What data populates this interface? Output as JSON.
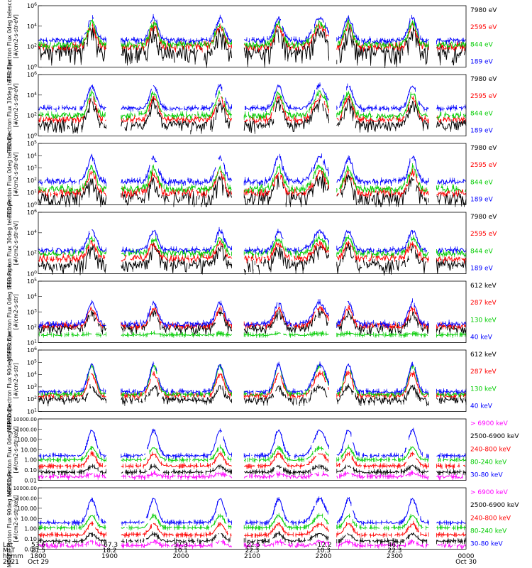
{
  "chart_data": [
    {
      "type": "line",
      "title": "",
      "ylabel": "TED Electron Flux 0deg telescope [#/cm2-s-str-eV]",
      "y_scale": "log",
      "ylim": [
        1,
        1000000
      ],
      "ytick_labels": [
        "10^0",
        "10^2",
        "10^4",
        "10^6"
      ],
      "series": [
        {
          "name": "7980 eV",
          "color": "#000000",
          "baseline": 1.6,
          "peak": 3.6,
          "noise": 1.0
        },
        {
          "name": "2595 eV",
          "color": "#ff0000",
          "baseline": 2.0,
          "peak": 4.0,
          "noise": 0.7
        },
        {
          "name": "844 eV",
          "color": "#00cc00",
          "baseline": 2.2,
          "peak": 4.3,
          "noise": 0.6
        },
        {
          "name": "189 eV",
          "color": "#0000ff",
          "baseline": 2.6,
          "peak": 4.8,
          "noise": 0.4
        }
      ]
    },
    {
      "type": "line",
      "title": "",
      "ylabel": "TED Electron Flux 30deg telescope [#/cm2-s-str-eV]",
      "y_scale": "log",
      "ylim": [
        1,
        1000000
      ],
      "ytick_labels": [
        "10^0",
        "10^2",
        "10^4",
        "10^6"
      ],
      "series": [
        {
          "name": "7980 eV",
          "color": "#000000",
          "baseline": 1.2,
          "peak": 3.4,
          "noise": 0.6
        },
        {
          "name": "2595 eV",
          "color": "#ff0000",
          "baseline": 1.6,
          "peak": 3.8,
          "noise": 0.5
        },
        {
          "name": "844 eV",
          "color": "#00cc00",
          "baseline": 2.0,
          "peak": 4.2,
          "noise": 0.5
        },
        {
          "name": "189 eV",
          "color": "#0000ff",
          "baseline": 2.7,
          "peak": 4.9,
          "noise": 0.3
        }
      ]
    },
    {
      "type": "line",
      "title": "",
      "ylabel": "TED Proton Flux 0deg telescope [#/cm2-s-str-eV]",
      "y_scale": "log",
      "ylim": [
        1,
        100000
      ],
      "ytick_labels": [
        "10^0",
        "10^1",
        "10^2",
        "10^3",
        "10^4",
        "10^5"
      ],
      "series": [
        {
          "name": "7980 eV",
          "color": "#000000",
          "baseline": 0.6,
          "peak": 2.2,
          "noise": 0.8
        },
        {
          "name": "2595 eV",
          "color": "#ff0000",
          "baseline": 1.0,
          "peak": 2.6,
          "noise": 0.6
        },
        {
          "name": "844 eV",
          "color": "#00cc00",
          "baseline": 1.3,
          "peak": 3.0,
          "noise": 0.5
        },
        {
          "name": "189 eV",
          "color": "#0000ff",
          "baseline": 1.9,
          "peak": 3.9,
          "noise": 0.4
        }
      ]
    },
    {
      "type": "line",
      "title": "",
      "ylabel": "TED Proton Flux 30deg telescope [#/cm2-s-str-eV]",
      "y_scale": "log",
      "ylim": [
        1,
        1000000
      ],
      "ytick_labels": [
        "10^0",
        "10^2",
        "10^4",
        "10^6"
      ],
      "series": [
        {
          "name": "7980 eV",
          "color": "#000000",
          "baseline": 1.0,
          "peak": 2.6,
          "noise": 0.7
        },
        {
          "name": "2595 eV",
          "color": "#ff0000",
          "baseline": 1.5,
          "peak": 3.0,
          "noise": 0.6
        },
        {
          "name": "844 eV",
          "color": "#00cc00",
          "baseline": 2.0,
          "peak": 3.4,
          "noise": 0.5
        },
        {
          "name": "189 eV",
          "color": "#0000ff",
          "baseline": 2.3,
          "peak": 4.2,
          "noise": 0.4
        }
      ]
    },
    {
      "type": "line",
      "title": "",
      "ylabel": "MEPED Electron Flux 0deg telescope [#/cm2-s-str]",
      "y_scale": "log",
      "ylim": [
        10,
        100000
      ],
      "ytick_labels": [
        "10^1",
        "10^2",
        "10^3",
        "10^4",
        "10^5"
      ],
      "series": [
        {
          "name": "612 keV",
          "color": "#000000",
          "baseline": 2.0,
          "peak": 3.0,
          "noise": 0.3
        },
        {
          "name": "287 keV",
          "color": "#ff0000",
          "baseline": 2.1,
          "peak": 3.2,
          "noise": 0.3
        },
        {
          "name": "130 keV",
          "color": "#00cc00",
          "baseline": 1.5,
          "peak": 1.6,
          "noise": 0.1
        },
        {
          "name": "40 keV",
          "color": "#0000ff",
          "baseline": 2.2,
          "peak": 3.6,
          "noise": 0.3
        }
      ]
    },
    {
      "type": "line",
      "title": "",
      "ylabel": "MEPED Electron Flux 90deg telescope [#/cm2-s-str]",
      "y_scale": "log",
      "ylim": [
        10,
        1000000
      ],
      "ytick_labels": [
        "10^1",
        "10^2",
        "10^3",
        "10^4",
        "10^5",
        "10^6"
      ],
      "series": [
        {
          "name": "612 keV",
          "color": "#000000",
          "baseline": 2.0,
          "peak": 3.0,
          "noise": 0.3
        },
        {
          "name": "287 keV",
          "color": "#ff0000",
          "baseline": 2.3,
          "peak": 4.1,
          "noise": 0.3
        },
        {
          "name": "130 keV",
          "color": "#00cc00",
          "baseline": 2.4,
          "peak": 4.7,
          "noise": 0.2
        },
        {
          "name": "40 keV",
          "color": "#0000ff",
          "baseline": 2.6,
          "peak": 4.8,
          "noise": 0.2
        }
      ]
    },
    {
      "type": "line",
      "title": "",
      "ylabel": "MEPED Proton Flux 0deg telescope [#/cm2-s-str-keV]",
      "y_scale": "log",
      "ylim": [
        0.01,
        10000
      ],
      "ytick_labels": [
        "0.01",
        "0.10",
        "1.00",
        "10.00",
        "100.00",
        "1000.00",
        "10000.00"
      ],
      "series": [
        {
          "name": "> 6900 keV",
          "color": "#ff00ff",
          "baseline": -1.6,
          "peak": -1.3,
          "noise": 0.15
        },
        {
          "name": "2500-6900 keV",
          "color": "#000000",
          "baseline": -1.2,
          "peak": -0.6,
          "noise": 0.2
        },
        {
          "name": "240-800 keV",
          "color": "#ff0000",
          "baseline": -0.6,
          "peak": 0.6,
          "noise": 0.2
        },
        {
          "name": "80-240 keV",
          "color": "#00cc00",
          "baseline": 0.0,
          "peak": 1.2,
          "noise": 0.15
        },
        {
          "name": "30-80 keV",
          "color": "#0000ff",
          "baseline": 0.4,
          "peak": 2.9,
          "noise": 0.2
        }
      ]
    },
    {
      "type": "line",
      "title": "",
      "ylabel": "MEPED Proton Flux 90deg telescope [#/cm2-s-str-keV]",
      "y_scale": "log",
      "ylim": [
        0.01,
        10000
      ],
      "ytick_labels": [
        "0.01",
        "0.10",
        "1.00",
        "10.00",
        "100.00",
        "1000.00",
        "10000.00"
      ],
      "series": [
        {
          "name": "> 6900 keV",
          "color": "#ff00ff",
          "baseline": -1.6,
          "peak": -1.2,
          "noise": 0.15
        },
        {
          "name": "2500-6900 keV",
          "color": "#000000",
          "baseline": -1.2,
          "peak": -0.5,
          "noise": 0.2
        },
        {
          "name": "240-800 keV",
          "color": "#ff0000",
          "baseline": -0.6,
          "peak": 0.5,
          "noise": 0.2
        },
        {
          "name": "80-240 keV",
          "color": "#00cc00",
          "baseline": 0.1,
          "peak": 1.3,
          "noise": 0.15
        },
        {
          "name": "30-80 keV",
          "color": "#0000ff",
          "baseline": 0.6,
          "peak": 2.9,
          "noise": 0.2
        }
      ]
    }
  ],
  "x_axis": {
    "row_labels": [
      "Lat",
      "MLT",
      "hhmm",
      "2021"
    ],
    "ticks": [
      {
        "lat": "53.6",
        "mlt": "21.5",
        "hhmm": "1800",
        "date": "Oct 29"
      },
      {
        "lat": "-67.3",
        "mlt": "18.2",
        "hhmm": "1900",
        "date": ""
      },
      {
        "lat": "57.3",
        "mlt": "10.1",
        "hhmm": "2000",
        "date": ""
      },
      {
        "lat": "-22.5",
        "mlt": "22.3",
        "hhmm": "2100",
        "date": ""
      },
      {
        "lat": "-12.2",
        "mlt": "10.3",
        "hhmm": "2200",
        "date": ""
      },
      {
        "lat": "46.7",
        "mlt": "22.3",
        "hhmm": "2300",
        "date": ""
      },
      {
        "lat": "",
        "mlt": "",
        "hhmm": "0000",
        "date": "Oct 30"
      }
    ]
  },
  "activity": {
    "peaks_hours": [
      0.75,
      1.62,
      2.55,
      3.37,
      4.35,
      5.25,
      6.3
    ],
    "wide_peak_hours": [
      3.95
    ],
    "gaps_hours": [
      [
        0.95,
        1.15
      ],
      [
        2.72,
        2.88
      ],
      [
        4.08,
        4.18
      ],
      [
        5.48,
        5.58
      ]
    ]
  }
}
